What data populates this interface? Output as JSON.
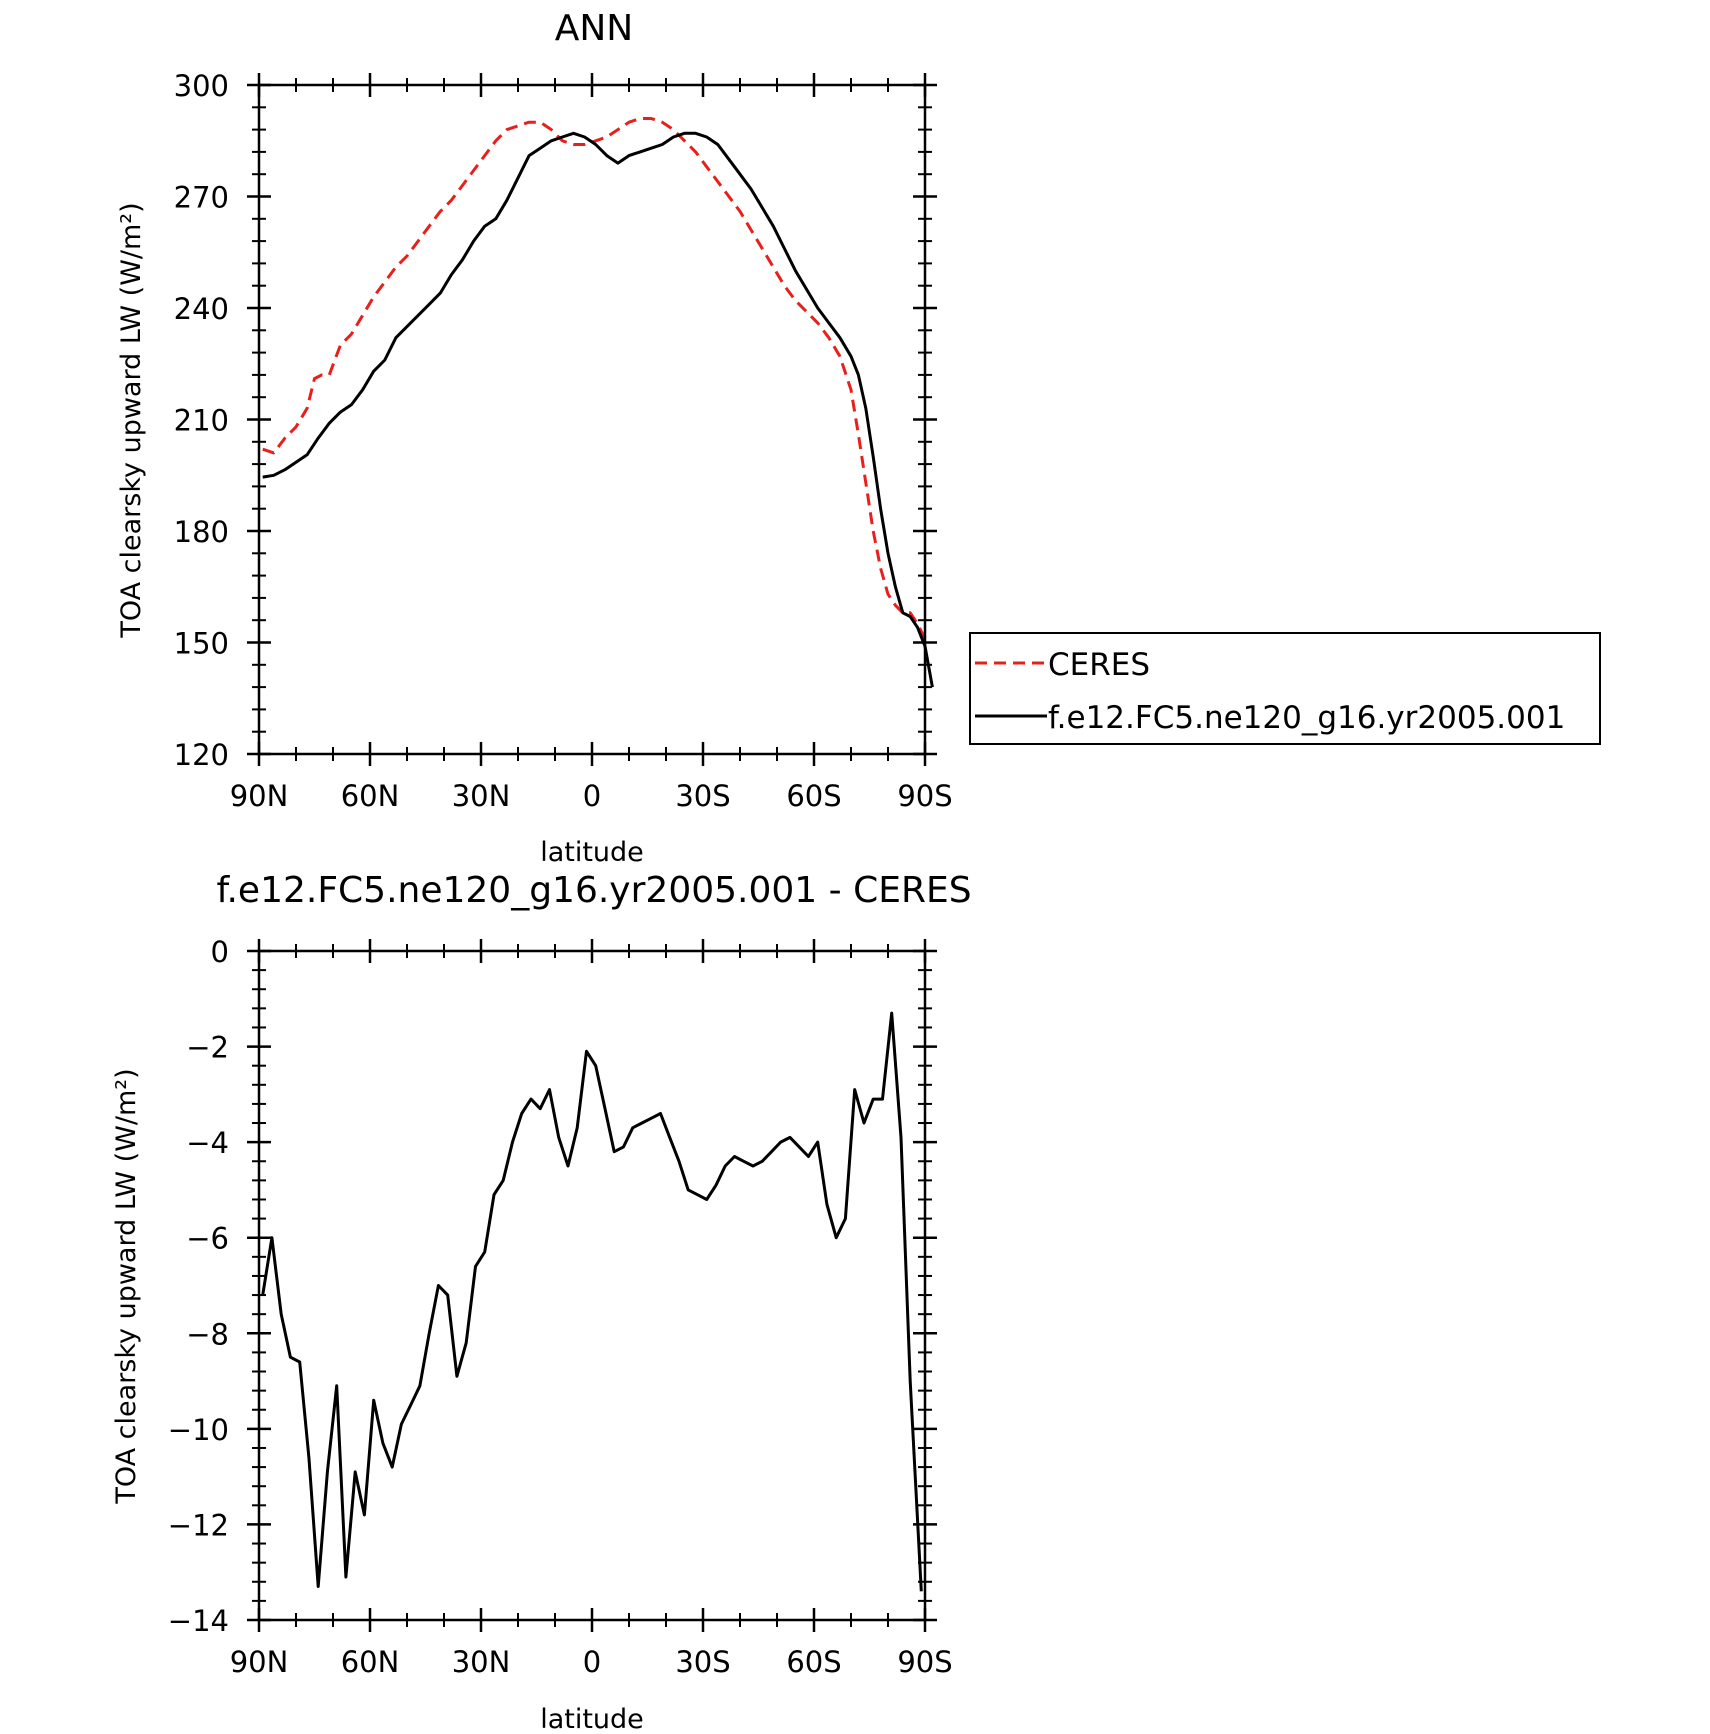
{
  "chart_data": [
    {
      "type": "line",
      "title": "ANN",
      "xlabel": "latitude",
      "ylabel": "TOA clearsky upward LW (W/m²)",
      "ylim": [
        120,
        300
      ],
      "xlim": [
        90,
        -90
      ],
      "xticks": [
        {
          "value": 90,
          "label": "90N"
        },
        {
          "value": 60,
          "label": "60N"
        },
        {
          "value": 30,
          "label": "30N"
        },
        {
          "value": 0,
          "label": "0"
        },
        {
          "value": -30,
          "label": "30S"
        },
        {
          "value": -60,
          "label": "60S"
        },
        {
          "value": -90,
          "label": "90S"
        }
      ],
      "yticks": [
        {
          "value": 300,
          "label": "300"
        },
        {
          "value": 270,
          "label": "270"
        },
        {
          "value": 240,
          "label": "240"
        },
        {
          "value": 210,
          "label": "210"
        },
        {
          "value": 180,
          "label": "180"
        },
        {
          "value": 150,
          "label": "150"
        },
        {
          "value": 120,
          "label": "120"
        }
      ],
      "grid": false,
      "legend": "right, outside plot",
      "series": [
        {
          "name": "CERES",
          "color": "#e8201c",
          "dash": "dashed",
          "points": [
            [
              89,
              202
            ],
            [
              86,
              201
            ],
            [
              83,
              205
            ],
            [
              80,
              208
            ],
            [
              77,
              213
            ],
            [
              75,
              221
            ],
            [
              73,
              222
            ],
            [
              71,
              222
            ],
            [
              68,
              230
            ],
            [
              65,
              233
            ],
            [
              62,
              238
            ],
            [
              59,
              243
            ],
            [
              56,
              247
            ],
            [
              53,
              251
            ],
            [
              50,
              254
            ],
            [
              47,
              258
            ],
            [
              44,
              262
            ],
            [
              41,
              266
            ],
            [
              38,
              269
            ],
            [
              35,
              273
            ],
            [
              32,
              277
            ],
            [
              29,
              281
            ],
            [
              26,
              285
            ],
            [
              23,
              288
            ],
            [
              20,
              289
            ],
            [
              17,
              290
            ],
            [
              14,
              290
            ],
            [
              11,
              288
            ],
            [
              8,
              285
            ],
            [
              5,
              284
            ],
            [
              2,
              284
            ],
            [
              -1,
              285
            ],
            [
              -4,
              286
            ],
            [
              -7,
              288
            ],
            [
              -10,
              290
            ],
            [
              -13,
              291
            ],
            [
              -16,
              291
            ],
            [
              -19,
              290
            ],
            [
              -22,
              288
            ],
            [
              -25,
              285
            ],
            [
              -28,
              282
            ],
            [
              -31,
              278
            ],
            [
              -34,
              274
            ],
            [
              -37,
              270
            ],
            [
              -40,
              266
            ],
            [
              -43,
              261
            ],
            [
              -46,
              256
            ],
            [
              -49,
              251
            ],
            [
              -52,
              246
            ],
            [
              -55,
              242
            ],
            [
              -58,
              239
            ],
            [
              -61,
              236
            ],
            [
              -64,
              232
            ],
            [
              -67,
              227
            ],
            [
              -70,
              218
            ],
            [
              -72,
              206
            ],
            [
              -74,
              193
            ],
            [
              -76,
              180
            ],
            [
              -78,
              170
            ],
            [
              -80,
              163
            ],
            [
              -82,
              160
            ],
            [
              -84,
              158
            ],
            [
              -86,
              158
            ],
            [
              -88,
              155
            ],
            [
              -90,
              151
            ]
          ]
        },
        {
          "name": "f.e12.FC5.ne120_g16.yr2005.001",
          "color": "#000000",
          "dash": "solid",
          "points": [
            [
              89,
              194.5
            ],
            [
              86,
              195
            ],
            [
              83,
              196.5
            ],
            [
              80,
              198.5
            ],
            [
              77,
              200.5
            ],
            [
              74,
              205
            ],
            [
              71,
              209
            ],
            [
              68,
              212
            ],
            [
              65,
              214
            ],
            [
              62,
              218
            ],
            [
              59,
              223
            ],
            [
              56,
              226
            ],
            [
              53,
              232
            ],
            [
              50,
              235
            ],
            [
              47,
              238
            ],
            [
              44,
              241
            ],
            [
              41,
              244
            ],
            [
              38,
              249
            ],
            [
              35,
              253
            ],
            [
              32,
              258
            ],
            [
              29,
              262
            ],
            [
              26,
              264
            ],
            [
              23,
              269
            ],
            [
              20,
              275
            ],
            [
              17,
              281
            ],
            [
              14,
              283
            ],
            [
              11,
              285
            ],
            [
              8,
              286
            ],
            [
              5,
              287
            ],
            [
              2,
              286
            ],
            [
              -1,
              284
            ],
            [
              -4,
              281
            ],
            [
              -7,
              279
            ],
            [
              -10,
              281
            ],
            [
              -13,
              282
            ],
            [
              -16,
              283
            ],
            [
              -19,
              284
            ],
            [
              -22,
              286
            ],
            [
              -25,
              287
            ],
            [
              -28,
              287
            ],
            [
              -31,
              286
            ],
            [
              -34,
              284
            ],
            [
              -37,
              280
            ],
            [
              -40,
              276
            ],
            [
              -43,
              272
            ],
            [
              -46,
              267
            ],
            [
              -49,
              262
            ],
            [
              -52,
              256
            ],
            [
              -55,
              250
            ],
            [
              -58,
              245
            ],
            [
              -61,
              240
            ],
            [
              -64,
              236
            ],
            [
              -67,
              232
            ],
            [
              -70,
              227
            ],
            [
              -72,
              222
            ],
            [
              -74,
              213
            ],
            [
              -76,
              200
            ],
            [
              -78,
              186
            ],
            [
              -80,
              174
            ],
            [
              -82,
              165
            ],
            [
              -84,
              158
            ],
            [
              -86,
              157
            ],
            [
              -88,
              154
            ],
            [
              -90,
              149
            ],
            [
              -92,
              138
            ]
          ]
        }
      ]
    },
    {
      "type": "line",
      "title": "f.e12.FC5.ne120_g16.yr2005.001 - CERES",
      "xlabel": "latitude",
      "ylabel": "TOA clearsky upward LW (W/m²)",
      "ylim": [
        -14,
        0
      ],
      "xlim": [
        90,
        -90
      ],
      "xticks": [
        {
          "value": 90,
          "label": "90N"
        },
        {
          "value": 60,
          "label": "60N"
        },
        {
          "value": 30,
          "label": "30N"
        },
        {
          "value": 0,
          "label": "0"
        },
        {
          "value": -30,
          "label": "30S"
        },
        {
          "value": -60,
          "label": "60S"
        },
        {
          "value": -90,
          "label": "90S"
        }
      ],
      "yticks": [
        {
          "value": 0,
          "label": "0"
        },
        {
          "value": -2,
          "label": "−2"
        },
        {
          "value": -4,
          "label": "−4"
        },
        {
          "value": -6,
          "label": "−6"
        },
        {
          "value": -8,
          "label": "−8"
        },
        {
          "value": -10,
          "label": "−10"
        },
        {
          "value": -12,
          "label": "−12"
        },
        {
          "value": -14,
          "label": "−14"
        }
      ],
      "grid": false,
      "series": [
        {
          "color": "#000000",
          "dash": "solid",
          "points": [
            [
              89,
              -7.2
            ],
            [
              86.5,
              -6
            ],
            [
              84,
              -7.6
            ],
            [
              81.5,
              -8.5
            ],
            [
              79,
              -8.6
            ],
            [
              76.5,
              -10.6
            ],
            [
              74,
              -13.3
            ],
            [
              71.5,
              -10.9
            ],
            [
              69,
              -9.1
            ],
            [
              66.5,
              -13.1
            ],
            [
              64,
              -10.9
            ],
            [
              61.5,
              -11.8
            ],
            [
              59,
              -9.4
            ],
            [
              56.5,
              -10.3
            ],
            [
              54,
              -10.8
            ],
            [
              51.5,
              -9.9
            ],
            [
              49,
              -9.5
            ],
            [
              46.5,
              -9.1
            ],
            [
              44,
              -8
            ],
            [
              41.5,
              -7
            ],
            [
              39,
              -7.2
            ],
            [
              36.5,
              -8.9
            ],
            [
              34,
              -8.2
            ],
            [
              31.5,
              -6.6
            ],
            [
              29,
              -6.3
            ],
            [
              26.5,
              -5.1
            ],
            [
              24,
              -4.8
            ],
            [
              21.5,
              -4
            ],
            [
              19,
              -3.4
            ],
            [
              16.5,
              -3.1
            ],
            [
              14,
              -3.3
            ],
            [
              11.5,
              -2.9
            ],
            [
              9,
              -3.9
            ],
            [
              6.5,
              -4.5
            ],
            [
              4,
              -3.7
            ],
            [
              1.5,
              -2.1
            ],
            [
              -1,
              -2.4
            ],
            [
              -3.5,
              -3.3
            ],
            [
              -6,
              -4.2
            ],
            [
              -8.5,
              -4.1
            ],
            [
              -11,
              -3.7
            ],
            [
              -13.5,
              -3.6
            ],
            [
              -16,
              -3.5
            ],
            [
              -18.5,
              -3.4
            ],
            [
              -21,
              -3.9
            ],
            [
              -23.5,
              -4.4
            ],
            [
              -26,
              -5
            ],
            [
              -28.5,
              -5.1
            ],
            [
              -31,
              -5.2
            ],
            [
              -33.5,
              -4.9
            ],
            [
              -36,
              -4.5
            ],
            [
              -38.5,
              -4.3
            ],
            [
              -41,
              -4.4
            ],
            [
              -43.5,
              -4.5
            ],
            [
              -46,
              -4.4
            ],
            [
              -48.5,
              -4.2
            ],
            [
              -51,
              -4
            ],
            [
              -53.5,
              -3.9
            ],
            [
              -56,
              -4.1
            ],
            [
              -58.5,
              -4.3
            ],
            [
              -61,
              -4
            ],
            [
              -63.5,
              -5.3
            ],
            [
              -66,
              -6
            ],
            [
              -68.5,
              -5.6
            ],
            [
              -71,
              -2.9
            ],
            [
              -73.5,
              -3.6
            ],
            [
              -76,
              -3.1
            ],
            [
              -78.5,
              -3.1
            ],
            [
              -81,
              -1.3
            ],
            [
              -83.5,
              -3.9
            ],
            [
              -86,
              -9
            ],
            [
              -89,
              -13.4
            ]
          ]
        }
      ]
    }
  ]
}
